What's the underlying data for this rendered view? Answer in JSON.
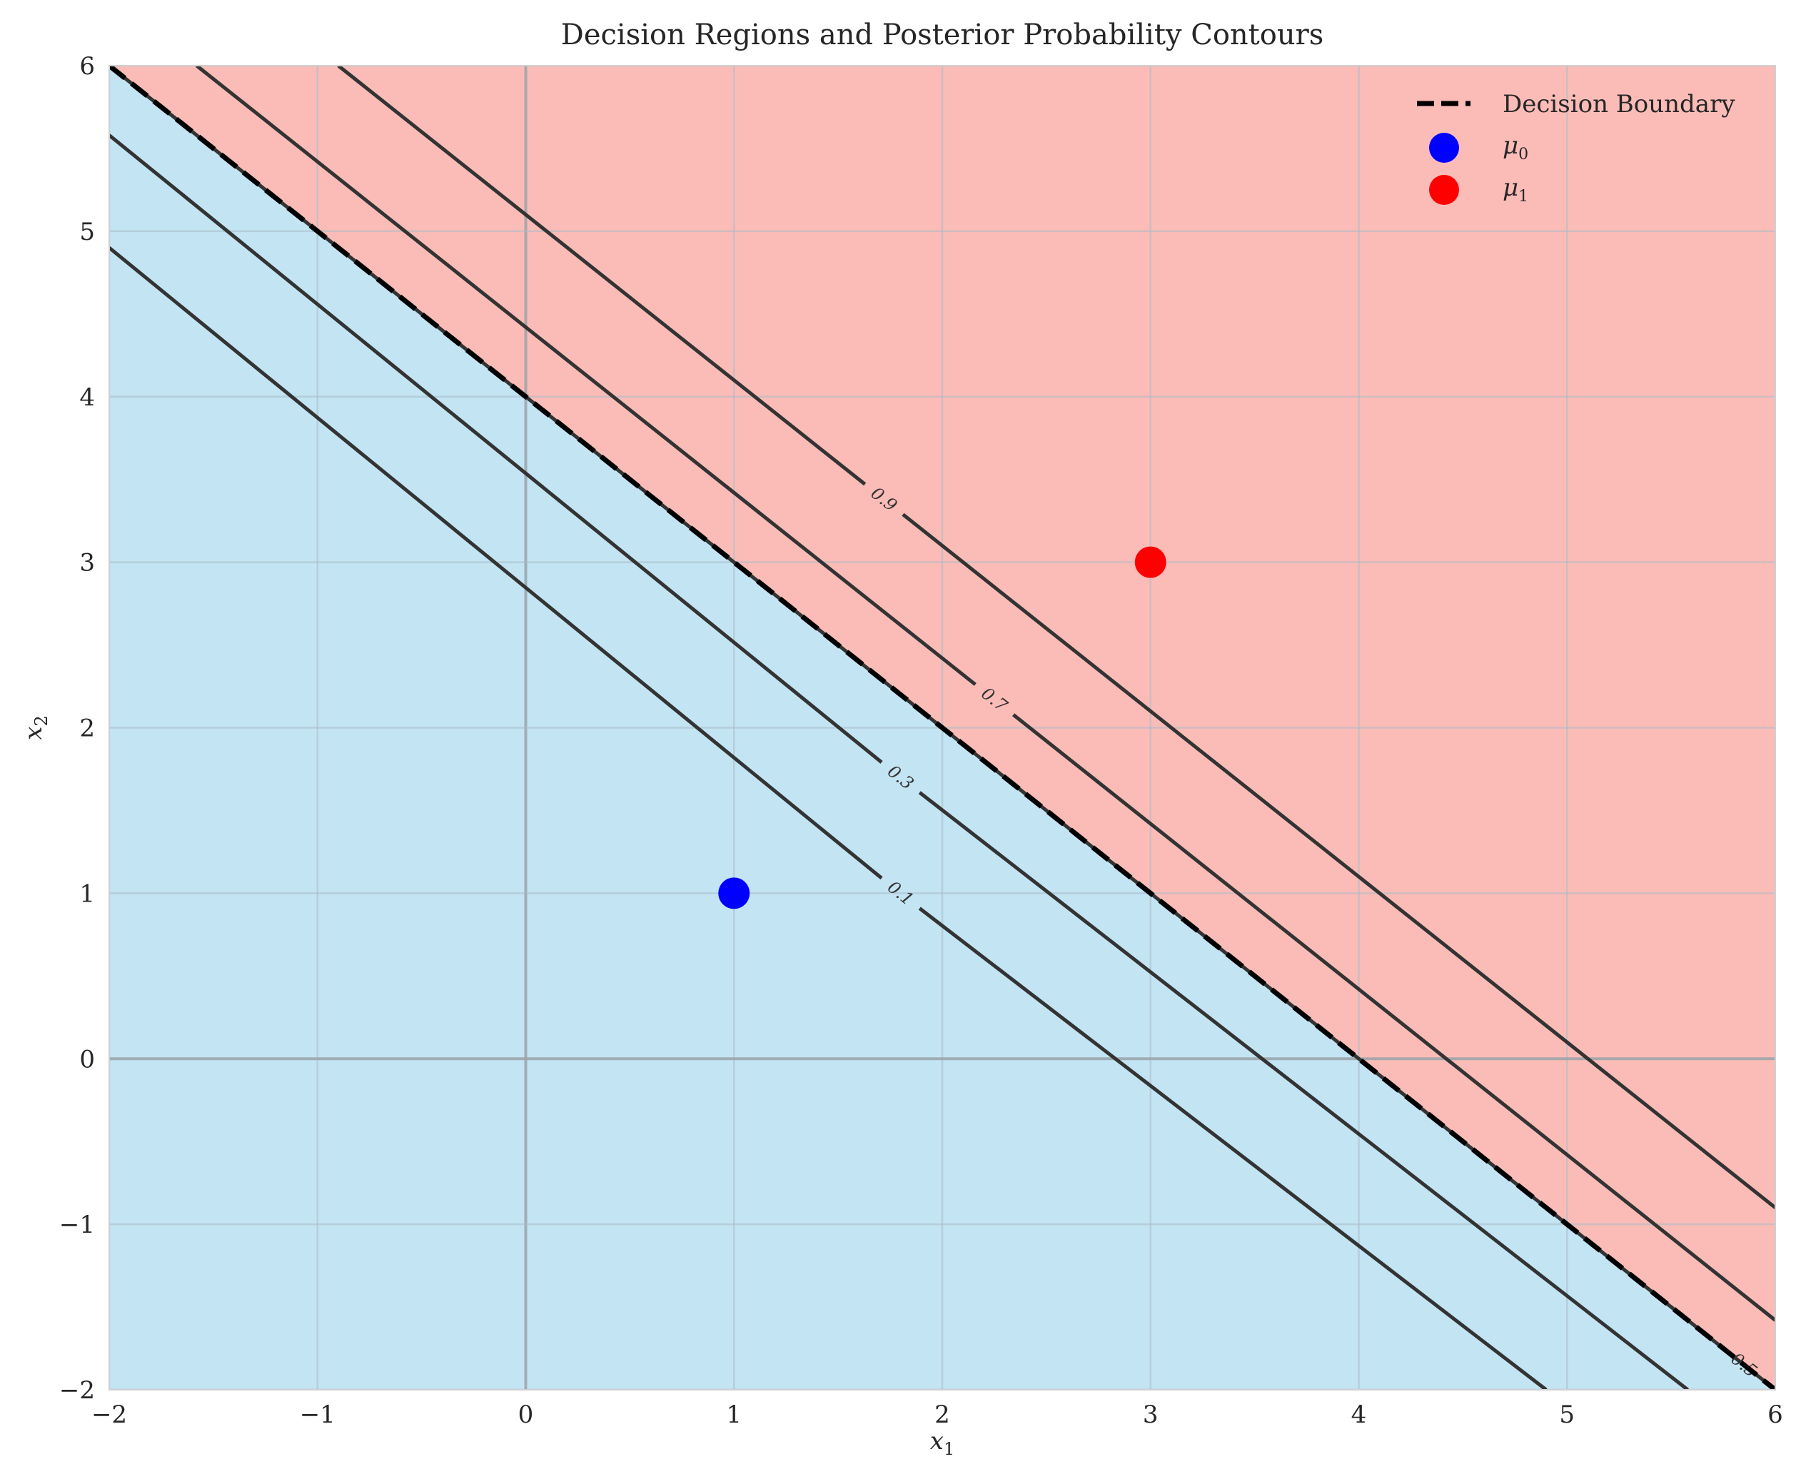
{
  "chart_data": {
    "type": "line",
    "title": "Decision Regions and Posterior Probability Contours",
    "xlabel": "x",
    "xlabel_sub": "1",
    "ylabel": "x",
    "ylabel_sub": "2",
    "xlim": [
      -2,
      6
    ],
    "ylim": [
      -2,
      6
    ],
    "xticks": [
      -2,
      -1,
      0,
      1,
      2,
      3,
      4,
      5,
      6
    ],
    "yticks": [
      -2,
      -1,
      0,
      1,
      2,
      3,
      4,
      5,
      6
    ],
    "xtick_labels": [
      "−2",
      "−1",
      "0",
      "1",
      "2",
      "3",
      "4",
      "5",
      "6"
    ],
    "ytick_labels": [
      "−2",
      "−1",
      "0",
      "1",
      "2",
      "3",
      "4",
      "5",
      "6"
    ],
    "grid": true,
    "legend_placement": "top-right",
    "regions": [
      {
        "class": 0,
        "color": "#c3e4f3",
        "side": "below"
      },
      {
        "class": 1,
        "color": "#fbbcb8",
        "side": "above"
      }
    ],
    "decision_boundary": {
      "name": "Decision Boundary",
      "color": "#000000",
      "style": "dashed",
      "points": [
        [
          -2,
          6
        ],
        [
          6,
          -2
        ]
      ]
    },
    "contours": [
      {
        "label": "0.1",
        "points": [
          [
            -2,
            4.9
          ],
          [
            4.9,
            -2
          ]
        ],
        "label_at": [
          1.8,
          1.0
        ]
      },
      {
        "label": "0.3",
        "points": [
          [
            -2,
            5.58
          ],
          [
            5.58,
            -2
          ]
        ],
        "label_at": [
          1.8,
          1.7
        ]
      },
      {
        "label": "0.5",
        "points": [
          [
            -2,
            6
          ],
          [
            6,
            -2
          ]
        ],
        "label_at": [
          5.85,
          -1.85
        ]
      },
      {
        "label": "0.7",
        "points": [
          [
            -1.58,
            6
          ],
          [
            6,
            -1.58
          ]
        ],
        "label_at": [
          2.25,
          2.17
        ]
      },
      {
        "label": "0.9",
        "points": [
          [
            -0.9,
            6
          ],
          [
            6,
            -0.9
          ]
        ],
        "label_at": [
          1.72,
          3.38
        ]
      }
    ],
    "contour_color": "#333333",
    "points": [
      {
        "name": "μ",
        "sub": "0",
        "x": 1,
        "y": 1,
        "color": "#0000ff"
      },
      {
        "name": "μ",
        "sub": "1",
        "x": 3,
        "y": 3,
        "color": "#ff0000"
      }
    ],
    "region_colors": {
      "class0": "#c3e4f3",
      "class1": "#fbbcb8"
    }
  }
}
